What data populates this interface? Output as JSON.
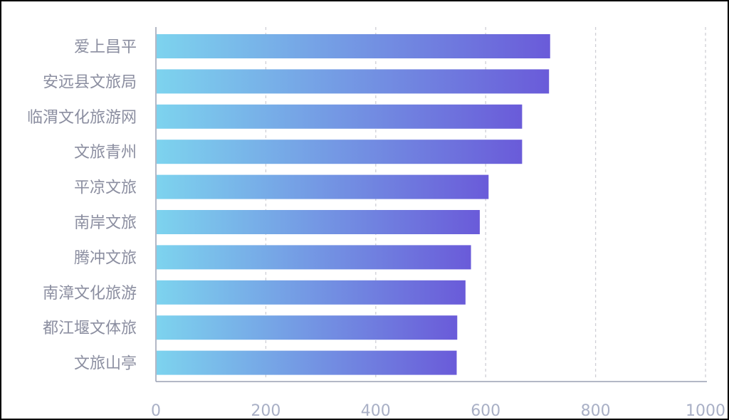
{
  "chart_data": {
    "type": "bar",
    "orientation": "horizontal",
    "categories": [
      "爱上昌平",
      "安远县文旅局",
      "临渭文化旅游网",
      "文旅青州",
      "平凉文旅",
      "南岸文旅",
      "腾冲文旅",
      "南漳文化旅游",
      "都江堰文体旅",
      "文旅山亭"
    ],
    "values": [
      716,
      714,
      665,
      665,
      604,
      588,
      572,
      562,
      547,
      546
    ],
    "xlim": [
      0,
      1000
    ],
    "xticks": [
      "0",
      "200",
      "400",
      "600",
      "800",
      "1000"
    ],
    "grid": "vertical dashed",
    "legend": "none",
    "colors": {
      "bar_gradient_start": "#7dd3ee",
      "bar_gradient_end": "#6a5bd9",
      "grid": "#cfcfd6",
      "axis": "#9aa0b4",
      "category_text": "#8b8ea0",
      "tick_text": "#a9b0c6"
    }
  }
}
